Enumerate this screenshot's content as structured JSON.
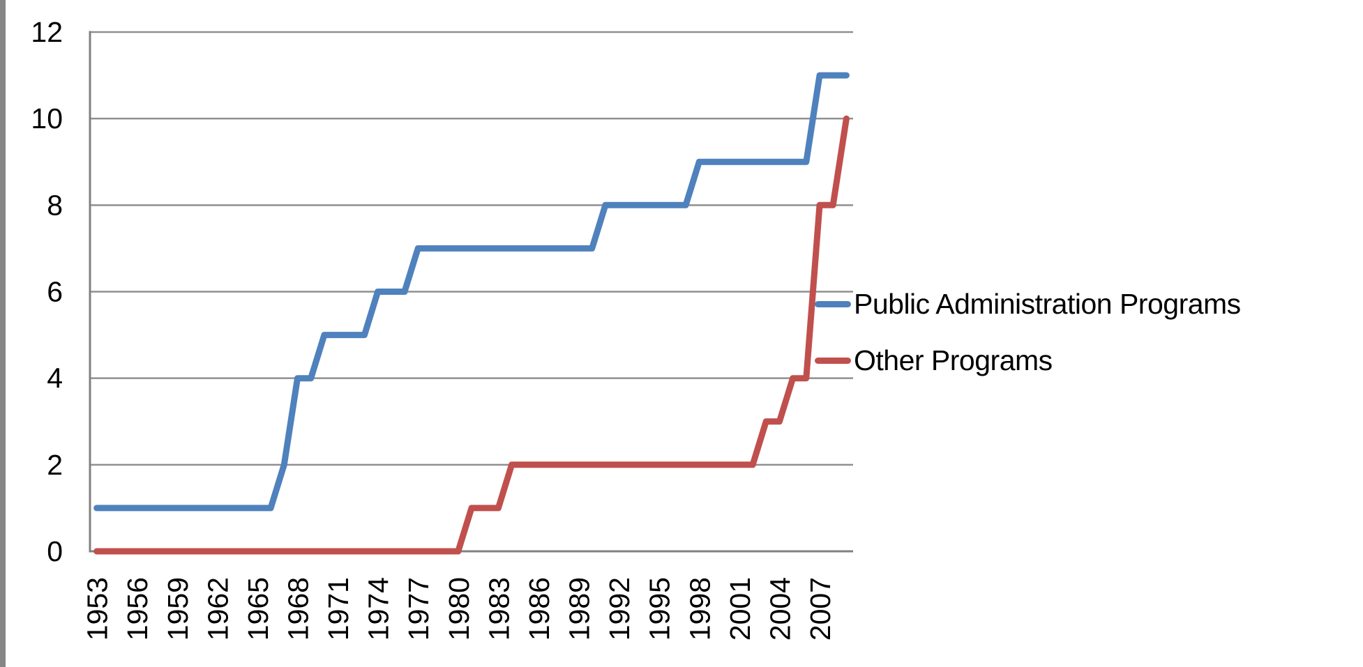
{
  "chart_data": {
    "type": "line",
    "title": "",
    "xlabel": "",
    "ylabel": "",
    "x": [
      1953,
      1954,
      1955,
      1956,
      1957,
      1958,
      1959,
      1960,
      1961,
      1962,
      1963,
      1964,
      1965,
      1966,
      1967,
      1968,
      1969,
      1970,
      1971,
      1972,
      1973,
      1974,
      1975,
      1976,
      1977,
      1978,
      1979,
      1980,
      1981,
      1982,
      1983,
      1984,
      1985,
      1986,
      1987,
      1988,
      1989,
      1990,
      1991,
      1992,
      1993,
      1994,
      1995,
      1996,
      1997,
      1998,
      1999,
      2000,
      2001,
      2002,
      2003,
      2004,
      2005,
      2006,
      2007,
      2008,
      2009
    ],
    "x_tick_labels": [
      "1953",
      "1956",
      "1959",
      "1962",
      "1965",
      "1968",
      "1971",
      "1974",
      "1977",
      "1980",
      "1983",
      "1986",
      "1989",
      "1992",
      "1995",
      "1998",
      "2001",
      "2004",
      "2007"
    ],
    "y_ticks": [
      0,
      2,
      4,
      6,
      8,
      10,
      12
    ],
    "ylim": [
      0,
      12
    ],
    "grid": "horizontal",
    "legend_position": "right",
    "series": [
      {
        "name": "Public Administration Programs",
        "color": "#4F81BD",
        "values": [
          1,
          1,
          1,
          1,
          1,
          1,
          1,
          1,
          1,
          1,
          1,
          1,
          1,
          1,
          2,
          4,
          4,
          5,
          5,
          5,
          5,
          6,
          6,
          6,
          7,
          7,
          7,
          7,
          7,
          7,
          7,
          7,
          7,
          7,
          7,
          7,
          7,
          7,
          8,
          8,
          8,
          8,
          8,
          8,
          8,
          9,
          9,
          9,
          9,
          9,
          9,
          9,
          9,
          9,
          11,
          11,
          11
        ]
      },
      {
        "name": "Other Programs",
        "color": "#C0504D",
        "values": [
          0,
          0,
          0,
          0,
          0,
          0,
          0,
          0,
          0,
          0,
          0,
          0,
          0,
          0,
          0,
          0,
          0,
          0,
          0,
          0,
          0,
          0,
          0,
          0,
          0,
          0,
          0,
          0,
          1,
          1,
          1,
          2,
          2,
          2,
          2,
          2,
          2,
          2,
          2,
          2,
          2,
          2,
          2,
          2,
          2,
          2,
          2,
          2,
          2,
          2,
          3,
          3,
          4,
          4,
          8,
          8,
          10
        ]
      }
    ]
  },
  "colors": {
    "background": "#FFFFFF",
    "gridline": "#8F8F8F",
    "axis_line": "#808080",
    "tick_text": "#000000",
    "edge_strip": "#868686"
  }
}
